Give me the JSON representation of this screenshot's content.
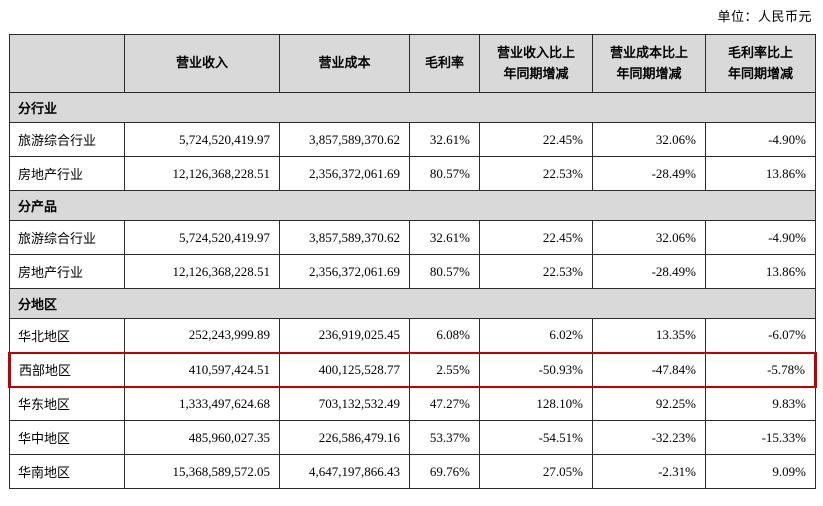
{
  "unit_label": "单位：人民币元",
  "colors": {
    "header_bg": "#d9d9d9",
    "table_border": "#2b2b2b",
    "highlight_border": "#c00000"
  },
  "table": {
    "headers": [
      "",
      "营业收入",
      "营业成本",
      "毛利率",
      "营业收入比上\n年同期增减",
      "营业成本比上\n年同期增减",
      "毛利率比上\n年同期增减"
    ],
    "rows": [
      {
        "type": "section",
        "label": "分行业"
      },
      {
        "type": "data",
        "label": "旅游综合行业",
        "values": [
          "5,724,520,419.97",
          "3,857,589,370.62",
          "32.61%",
          "22.45%",
          "32.06%",
          "-4.90%"
        ]
      },
      {
        "type": "data",
        "label": "房地产行业",
        "values": [
          "12,126,368,228.51",
          "2,356,372,061.69",
          "80.57%",
          "22.53%",
          "-28.49%",
          "13.86%"
        ]
      },
      {
        "type": "section",
        "label": "分产品"
      },
      {
        "type": "data",
        "label": "旅游综合行业",
        "values": [
          "5,724,520,419.97",
          "3,857,589,370.62",
          "32.61%",
          "22.45%",
          "32.06%",
          "-4.90%"
        ]
      },
      {
        "type": "data",
        "label": "房地产行业",
        "values": [
          "12,126,368,228.51",
          "2,356,372,061.69",
          "80.57%",
          "22.53%",
          "-28.49%",
          "13.86%"
        ]
      },
      {
        "type": "section",
        "label": "分地区"
      },
      {
        "type": "data",
        "label": "华北地区",
        "values": [
          "252,243,999.89",
          "236,919,025.45",
          "6.08%",
          "6.02%",
          "13.35%",
          "-6.07%"
        ]
      },
      {
        "type": "data",
        "label": "西部地区",
        "highlight": true,
        "values": [
          "410,597,424.51",
          "400,125,528.77",
          "2.55%",
          "-50.93%",
          "-47.84%",
          "-5.78%"
        ]
      },
      {
        "type": "data",
        "label": "华东地区",
        "values": [
          "1,333,497,624.68",
          "703,132,532.49",
          "47.27%",
          "128.10%",
          "92.25%",
          "9.83%"
        ]
      },
      {
        "type": "data",
        "label": "华中地区",
        "values": [
          "485,960,027.35",
          "226,586,479.16",
          "53.37%",
          "-54.51%",
          "-32.23%",
          "-15.33%"
        ]
      },
      {
        "type": "data",
        "label": "华南地区",
        "values": [
          "15,368,589,572.05",
          "4,647,197,866.43",
          "69.76%",
          "27.05%",
          "-2.31%",
          "9.09%"
        ]
      }
    ]
  }
}
